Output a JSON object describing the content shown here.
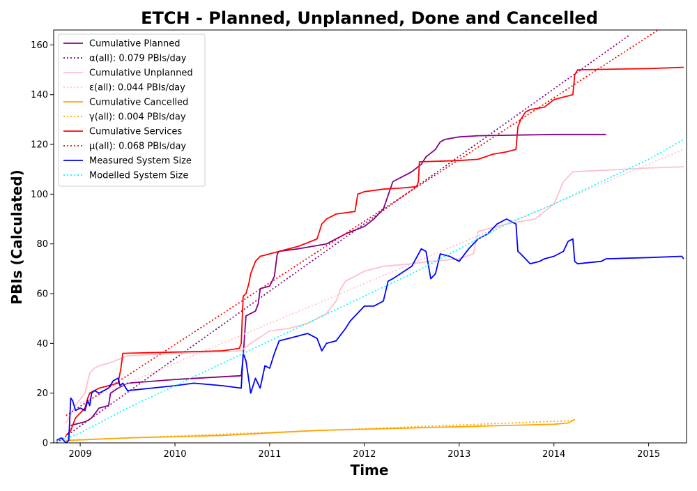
{
  "chart_data": {
    "type": "line",
    "title": "ETCH - Planned, Unplanned, Done  and Cancelled",
    "xlabel": "Time",
    "ylabel": "PBIs (Calculated)",
    "xlim": [
      2008.72,
      2015.4
    ],
    "ylim": [
      0,
      166
    ],
    "x_ticks": [
      2009,
      2010,
      2011,
      2012,
      2013,
      2014,
      2015
    ],
    "y_ticks": [
      0,
      20,
      40,
      60,
      80,
      100,
      120,
      140,
      160
    ],
    "grid": false,
    "legend_position": "top-left",
    "series": [
      {
        "name": "Cumulative Planned",
        "color": "#800080",
        "style": "solid",
        "x": [
          2008.9,
          2009.0,
          2009.05,
          2009.08,
          2009.12,
          2009.2,
          2009.25,
          2009.3,
          2009.32,
          2009.4,
          2009.45,
          2009.5,
          2010.0,
          2010.7,
          2010.72,
          2010.75,
          2010.8,
          2010.85,
          2010.88,
          2010.9,
          2011.0,
          2011.05,
          2011.08,
          2011.1,
          2011.3,
          2011.6,
          2011.8,
          2012.0,
          2012.1,
          2012.2,
          2012.3,
          2012.5,
          2012.6,
          2012.65,
          2012.75,
          2012.8,
          2012.85,
          2013.0,
          2013.2,
          2014.0,
          2014.55
        ],
        "y": [
          7,
          8,
          8.5,
          9,
          10,
          14,
          14.5,
          15,
          20,
          22,
          23,
          24,
          25.5,
          27,
          35,
          51,
          52,
          53,
          56,
          62,
          63,
          67,
          76,
          77,
          78,
          80,
          84,
          87,
          90,
          94,
          105,
          109,
          112,
          115,
          118,
          121,
          122,
          123,
          123.5,
          124,
          124
        ]
      },
      {
        "name": "α(all): 0.079 PBIs/day",
        "color": "#800080",
        "style": "dotted",
        "x": [
          2008.75,
          2014.8
        ],
        "y": [
          0,
          164
        ]
      },
      {
        "name": "Cumulative Unplanned",
        "color": "#ffc0cb",
        "style": "solid",
        "x": [
          2008.85,
          2008.95,
          2009.05,
          2009.1,
          2009.15,
          2009.2,
          2009.3,
          2009.5,
          2010.0,
          2010.7,
          2010.8,
          2011.0,
          2011.2,
          2011.4,
          2011.6,
          2011.7,
          2011.75,
          2011.8,
          2011.9,
          2012.0,
          2012.2,
          2012.5,
          2012.7,
          2013.0,
          2013.15,
          2013.2,
          2013.5,
          2013.8,
          2013.9,
          2014.0,
          2014.1,
          2014.2,
          2015.0,
          2015.37
        ],
        "y": [
          8,
          15,
          20,
          28,
          30,
          31,
          32,
          35,
          36,
          37,
          40,
          45,
          46,
          48,
          52,
          57,
          62,
          65,
          67,
          69,
          71,
          72,
          73,
          74,
          76,
          85,
          88,
          90,
          93,
          96,
          105,
          109,
          110.5,
          111
        ]
      },
      {
        "name": "ε(all): 0.044 PBIs/day",
        "color": "#ffc0cb",
        "style": "dotted",
        "x": [
          2009.0,
          2015.37
        ],
        "y": [
          16,
          118
        ]
      },
      {
        "name": "Cumulative Cancelled",
        "color": "#ffa500",
        "style": "solid",
        "x": [
          2008.85,
          2009.0,
          2009.5,
          2010.0,
          2010.5,
          2011.0,
          2011.5,
          2012.0,
          2012.5,
          2013.0,
          2013.5,
          2014.0,
          2014.15,
          2014.2,
          2014.22
        ],
        "y": [
          1,
          1.2,
          2,
          2.5,
          3,
          4,
          5,
          5.5,
          6,
          6.5,
          7,
          7.5,
          8,
          9,
          9.5
        ]
      },
      {
        "name": "γ(all): 0.004 PBIs/day",
        "color": "#ffa500",
        "style": "dotted",
        "x": [
          2008.85,
          2014.22
        ],
        "y": [
          1,
          9
        ]
      },
      {
        "name": "Cumulative Services",
        "color": "#ff0000",
        "style": "solid",
        "x": [
          2008.85,
          2008.9,
          2008.95,
          2009.0,
          2009.05,
          2009.08,
          2009.1,
          2009.15,
          2009.2,
          2009.3,
          2009.4,
          2009.43,
          2009.45,
          2010.0,
          2010.5,
          2010.68,
          2010.7,
          2010.72,
          2010.75,
          2010.78,
          2010.8,
          2010.85,
          2010.9,
          2011.0,
          2011.1,
          2011.3,
          2011.5,
          2011.55,
          2011.6,
          2011.7,
          2011.9,
          2011.93,
          2012.0,
          2012.2,
          2012.4,
          2012.55,
          2012.57,
          2012.58,
          2013.0,
          2013.2,
          2013.35,
          2013.5,
          2013.6,
          2013.62,
          2013.65,
          2013.7,
          2013.75,
          2013.9,
          2014.0,
          2014.1,
          2014.2,
          2014.22,
          2014.25,
          2015.0,
          2015.37
        ],
        "y": [
          3,
          5,
          10,
          12,
          14,
          18,
          20,
          21,
          22,
          23,
          24,
          30,
          36,
          36.5,
          37,
          38,
          40,
          59,
          60,
          64,
          68,
          73,
          75,
          76,
          77,
          79,
          82,
          88,
          90,
          92,
          93,
          100,
          101,
          102,
          102.5,
          103,
          105,
          113,
          113.5,
          114,
          116,
          117,
          118,
          127,
          130,
          133,
          134,
          135,
          138,
          139,
          140,
          148,
          150,
          150.5,
          151
        ]
      },
      {
        "name": "μ(all): 0.068 PBIs/day",
        "color": "#ff0000",
        "style": "dotted",
        "x": [
          2008.85,
          2015.1
        ],
        "y": [
          11,
          166
        ]
      },
      {
        "name": "Measured System Size",
        "color": "#0000ff",
        "style": "solid",
        "x": [
          2008.75,
          2008.8,
          2008.85,
          2008.88,
          2008.9,
          2008.92,
          2008.95,
          2009.0,
          2009.05,
          2009.08,
          2009.1,
          2009.12,
          2009.15,
          2009.2,
          2009.3,
          2009.35,
          2009.4,
          2009.42,
          2009.45,
          2009.5,
          2010.0,
          2010.2,
          2010.5,
          2010.7,
          2010.72,
          2010.75,
          2010.8,
          2010.85,
          2010.9,
          2010.95,
          2011.0,
          2011.05,
          2011.1,
          2011.2,
          2011.3,
          2011.4,
          2011.5,
          2011.55,
          2011.6,
          2011.7,
          2011.8,
          2011.85,
          2011.9,
          2012.0,
          2012.1,
          2012.2,
          2012.25,
          2012.3,
          2012.5,
          2012.6,
          2012.65,
          2012.7,
          2012.75,
          2012.8,
          2012.9,
          2013.0,
          2013.1,
          2013.2,
          2013.3,
          2013.4,
          2013.5,
          2013.6,
          2013.62,
          2013.65,
          2013.7,
          2013.75,
          2013.85,
          2013.9,
          2014.0,
          2014.05,
          2014.1,
          2014.15,
          2014.2,
          2014.22,
          2014.25,
          2014.5,
          2014.55,
          2015.0,
          2015.35,
          2015.37
        ],
        "y": [
          1,
          2,
          0,
          1,
          18,
          17,
          13,
          14,
          13,
          17,
          15,
          20,
          21,
          20,
          22,
          25,
          26,
          23,
          24,
          21,
          23,
          24,
          23,
          22,
          36,
          33,
          20,
          26,
          22,
          31,
          30,
          36,
          41,
          42,
          43,
          44,
          42,
          37,
          40,
          41,
          46,
          49,
          51,
          55,
          55,
          57,
          65,
          66,
          71,
          78,
          77,
          66,
          68,
          76,
          75,
          73,
          78,
          82,
          84,
          88,
          90,
          88,
          77,
          76,
          74,
          72,
          73,
          74,
          75,
          76,
          77,
          81,
          82,
          73,
          72,
          73,
          74,
          74.5,
          75,
          74
        ]
      },
      {
        "name": "Modelled System Size",
        "color": "#00ffff",
        "style": "dotted",
        "x": [
          2008.72,
          2009.0,
          2009.5,
          2010.0,
          2010.5,
          2011.0,
          2011.5,
          2012.0,
          2012.5,
          2013.0,
          2013.5,
          2014.0,
          2014.5,
          2015.0,
          2015.37
        ],
        "y": [
          0,
          4,
          14,
          23,
          32,
          41,
          50,
          59,
          68,
          78,
          88,
          96,
          105,
          114,
          122
        ]
      }
    ]
  }
}
